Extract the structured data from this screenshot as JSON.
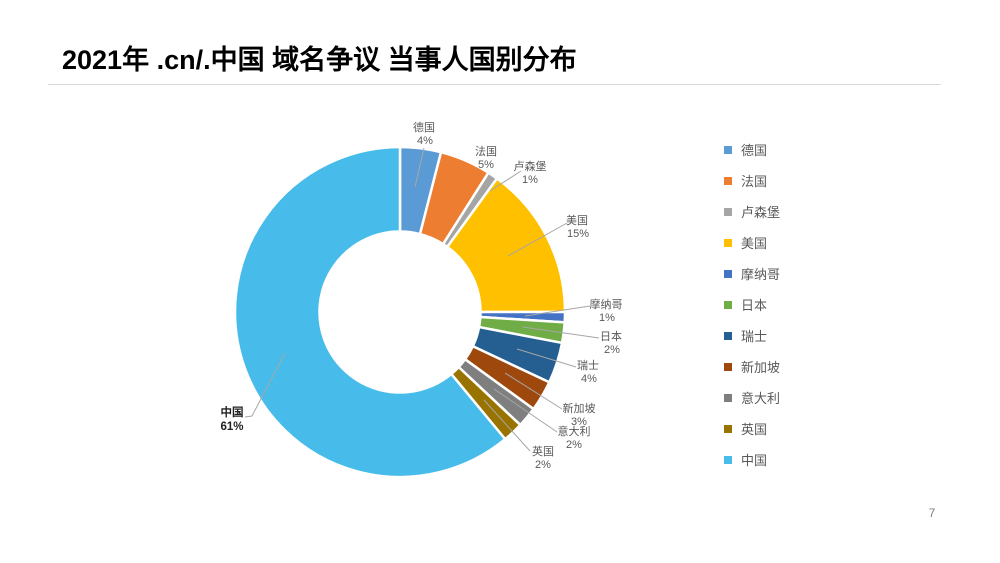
{
  "page": {
    "title": "2021年 .cn/.中国 域名争议 当事人国别分布",
    "page_number": "7",
    "background_color": "#FFFFFF",
    "title_rule_color": "#D9D9D9"
  },
  "chart_data": {
    "type": "pie",
    "subtype": "donut",
    "title": "2021年 .cn/.中国 域名争议 当事人国别分布",
    "categories": [
      "德国",
      "法国",
      "卢森堡",
      "美国",
      "摩纳哥",
      "日本",
      "瑞士",
      "新加坡",
      "意大利",
      "英国",
      "中国"
    ],
    "values": [
      4,
      5,
      1,
      15,
      1,
      2,
      4,
      3,
      2,
      2,
      61
    ],
    "unit": "%",
    "colors": [
      "#5B9BD5",
      "#ED7D31",
      "#A5A5A5",
      "#FFC000",
      "#4472C4",
      "#70AD47",
      "#255E91",
      "#9E480E",
      "#7F7F7F",
      "#997300",
      "#47BCEA"
    ],
    "start_angle_deg": 0,
    "direction": "clockwise",
    "donut_hole_ratio": 0.485,
    "grid": false,
    "legend_position": "right",
    "data_labels": "category name + percent, outside slices with gray leader lines",
    "label_color": "#595959",
    "leader_line_color": "#A6A6A6",
    "emphasized_label": "中国"
  }
}
